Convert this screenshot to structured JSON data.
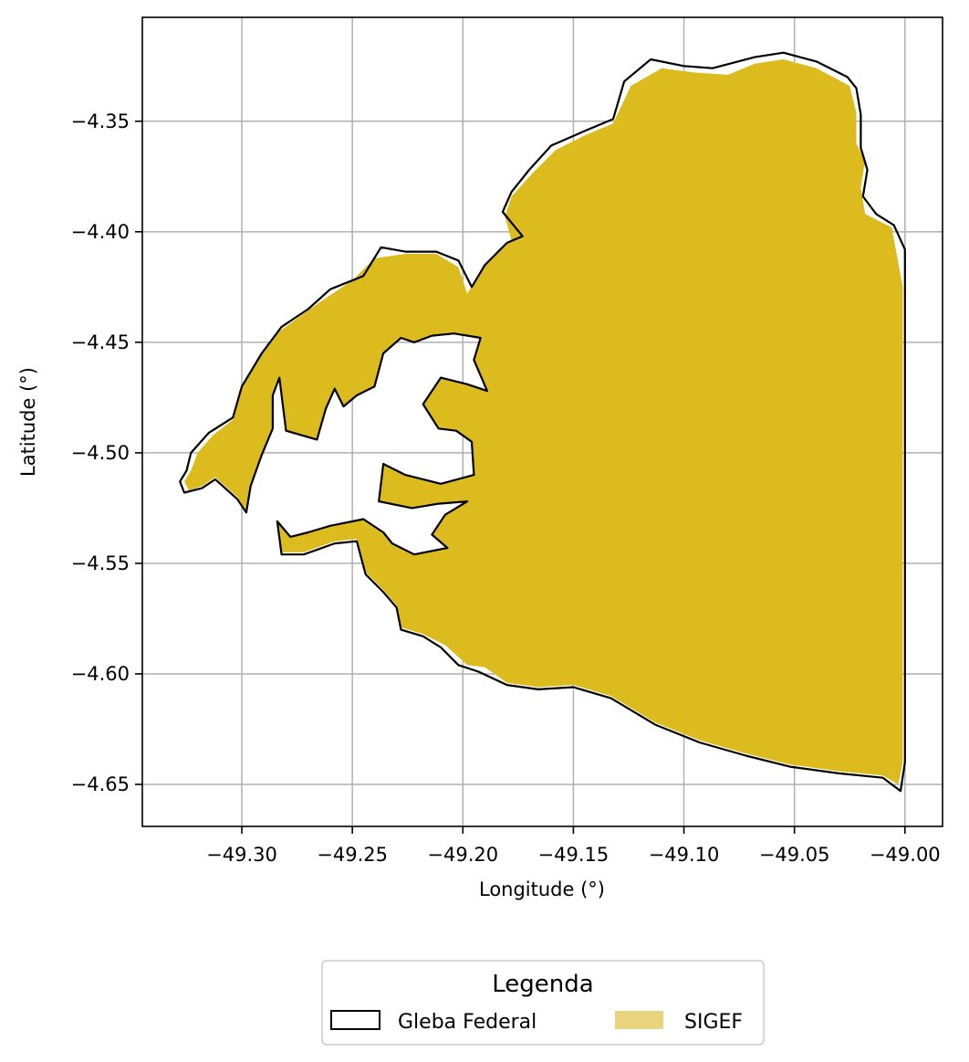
{
  "chart_data": {
    "type": "map",
    "xlabel": "Longitude (°)",
    "ylabel": "Latitude (°)",
    "xlim": [
      -49.345,
      -48.983
    ],
    "ylim": [
      -4.669,
      -4.303
    ],
    "x_ticks": [
      -49.3,
      -49.25,
      -49.2,
      -49.15,
      -49.1,
      -49.05,
      -49.0
    ],
    "x_tick_labels": [
      "−49.30",
      "−49.25",
      "−49.20",
      "−49.15",
      "−49.10",
      "−49.05",
      "−49.00"
    ],
    "y_ticks": [
      -4.35,
      -4.4,
      -4.45,
      -4.5,
      -4.55,
      -4.6,
      -4.65
    ],
    "y_tick_labels": [
      "−4.35",
      "−4.40",
      "−4.45",
      "−4.50",
      "−4.55",
      "−4.60",
      "−4.65"
    ],
    "grid": true,
    "legend": {
      "title": "Legenda",
      "placement": "bottom-center",
      "entries": [
        {
          "label": "Gleba Federal",
          "style": "outline",
          "color": "#000000"
        },
        {
          "label": "SIGEF",
          "style": "fill",
          "color": "#e8d47c"
        }
      ]
    },
    "layers": [
      {
        "name": "Gleba Federal",
        "style": "outline",
        "polygon": [
          [
            -49.323,
            -4.5
          ],
          [
            -49.325,
            -4.508
          ],
          [
            -49.328,
            -4.513
          ],
          [
            -49.326,
            -4.518
          ],
          [
            -49.318,
            -4.516
          ],
          [
            -49.312,
            -4.512
          ],
          [
            -49.302,
            -4.521
          ],
          [
            -49.298,
            -4.527
          ],
          [
            -49.296,
            -4.515
          ],
          [
            -49.291,
            -4.501
          ],
          [
            -49.286,
            -4.489
          ],
          [
            -49.286,
            -4.474
          ],
          [
            -49.283,
            -4.466
          ],
          [
            -49.28,
            -4.49
          ],
          [
            -49.266,
            -4.494
          ],
          [
            -49.262,
            -4.48
          ],
          [
            -49.258,
            -4.471
          ],
          [
            -49.254,
            -4.479
          ],
          [
            -49.248,
            -4.474
          ],
          [
            -49.24,
            -4.47
          ],
          [
            -49.236,
            -4.455
          ],
          [
            -49.228,
            -4.448
          ],
          [
            -49.222,
            -4.45
          ],
          [
            -49.214,
            -4.447
          ],
          [
            -49.204,
            -4.446
          ],
          [
            -49.192,
            -4.448
          ],
          [
            -49.195,
            -4.458
          ],
          [
            -49.189,
            -4.472
          ],
          [
            -49.198,
            -4.469
          ],
          [
            -49.21,
            -4.466
          ],
          [
            -49.218,
            -4.478
          ],
          [
            -49.211,
            -4.489
          ],
          [
            -49.203,
            -4.49
          ],
          [
            -49.196,
            -4.495
          ],
          [
            -49.195,
            -4.51
          ],
          [
            -49.21,
            -4.514
          ],
          [
            -49.226,
            -4.51
          ],
          [
            -49.236,
            -4.505
          ],
          [
            -49.238,
            -4.522
          ],
          [
            -49.223,
            -4.525
          ],
          [
            -49.211,
            -4.523
          ],
          [
            -49.198,
            -4.522
          ],
          [
            -49.208,
            -4.528
          ],
          [
            -49.214,
            -4.537
          ],
          [
            -49.207,
            -4.543
          ],
          [
            -49.222,
            -4.546
          ],
          [
            -49.232,
            -4.541
          ],
          [
            -49.236,
            -4.536
          ],
          [
            -49.245,
            -4.53
          ],
          [
            -49.26,
            -4.533
          ],
          [
            -49.27,
            -4.536
          ],
          [
            -49.278,
            -4.538
          ],
          [
            -49.284,
            -4.531
          ],
          [
            -49.282,
            -4.546
          ],
          [
            -49.272,
            -4.546
          ],
          [
            -49.258,
            -4.541
          ],
          [
            -49.248,
            -4.54
          ],
          [
            -49.244,
            -4.555
          ],
          [
            -49.236,
            -4.563
          ],
          [
            -49.23,
            -4.57
          ],
          [
            -49.228,
            -4.58
          ],
          [
            -49.218,
            -4.583
          ],
          [
            -49.21,
            -4.588
          ],
          [
            -49.202,
            -4.596
          ],
          [
            -49.193,
            -4.599
          ],
          [
            -49.18,
            -4.605
          ],
          [
            -49.166,
            -4.607
          ],
          [
            -49.15,
            -4.606
          ],
          [
            -49.133,
            -4.611
          ],
          [
            -49.113,
            -4.623
          ],
          [
            -49.093,
            -4.631
          ],
          [
            -49.072,
            -4.637
          ],
          [
            -49.052,
            -4.642
          ],
          [
            -49.03,
            -4.645
          ],
          [
            -49.01,
            -4.647
          ],
          [
            -49.002,
            -4.653
          ],
          [
            -49.0,
            -4.64
          ],
          [
            -49.0,
            -4.55
          ],
          [
            -49.0,
            -4.45
          ],
          [
            -49.0,
            -4.408
          ],
          [
            -49.005,
            -4.397
          ],
          [
            -49.013,
            -4.392
          ],
          [
            -49.019,
            -4.384
          ],
          [
            -49.017,
            -4.372
          ],
          [
            -49.02,
            -4.362
          ],
          [
            -49.02,
            -4.347
          ],
          [
            -49.022,
            -4.335
          ],
          [
            -49.026,
            -4.33
          ],
          [
            -49.04,
            -4.323
          ],
          [
            -49.055,
            -4.319
          ],
          [
            -49.068,
            -4.321
          ],
          [
            -49.087,
            -4.326
          ],
          [
            -49.1,
            -4.325
          ],
          [
            -49.115,
            -4.322
          ],
          [
            -49.127,
            -4.332
          ],
          [
            -49.132,
            -4.349
          ],
          [
            -49.144,
            -4.354
          ],
          [
            -49.16,
            -4.361
          ],
          [
            -49.17,
            -4.372
          ],
          [
            -49.178,
            -4.382
          ],
          [
            -49.182,
            -4.391
          ],
          [
            -49.173,
            -4.402
          ],
          [
            -49.18,
            -4.405
          ],
          [
            -49.19,
            -4.415
          ],
          [
            -49.196,
            -4.425
          ],
          [
            -49.202,
            -4.413
          ],
          [
            -49.212,
            -4.409
          ],
          [
            -49.226,
            -4.409
          ],
          [
            -49.237,
            -4.407
          ],
          [
            -49.245,
            -4.42
          ],
          [
            -49.26,
            -4.426
          ],
          [
            -49.27,
            -4.435
          ],
          [
            -49.282,
            -4.443
          ],
          [
            -49.291,
            -4.455
          ],
          [
            -49.3,
            -4.47
          ],
          [
            -49.304,
            -4.484
          ],
          [
            -49.315,
            -4.491
          ],
          [
            -49.323,
            -4.5
          ]
        ]
      },
      {
        "name": "SIGEF",
        "style": "fill",
        "polygon": [
          [
            -49.32,
            -4.5
          ],
          [
            -49.323,
            -4.508
          ],
          [
            -49.326,
            -4.513
          ],
          [
            -49.324,
            -4.517
          ],
          [
            -49.318,
            -4.515
          ],
          [
            -49.312,
            -4.511
          ],
          [
            -49.302,
            -4.52
          ],
          [
            -49.298,
            -4.526
          ],
          [
            -49.296,
            -4.515
          ],
          [
            -49.291,
            -4.501
          ],
          [
            -49.286,
            -4.489
          ],
          [
            -49.286,
            -4.474
          ],
          [
            -49.283,
            -4.466
          ],
          [
            -49.28,
            -4.49
          ],
          [
            -49.266,
            -4.494
          ],
          [
            -49.262,
            -4.48
          ],
          [
            -49.258,
            -4.471
          ],
          [
            -49.254,
            -4.479
          ],
          [
            -49.248,
            -4.474
          ],
          [
            -49.24,
            -4.47
          ],
          [
            -49.236,
            -4.455
          ],
          [
            -49.228,
            -4.448
          ],
          [
            -49.222,
            -4.45
          ],
          [
            -49.214,
            -4.447
          ],
          [
            -49.204,
            -4.446
          ],
          [
            -49.192,
            -4.448
          ],
          [
            -49.195,
            -4.458
          ],
          [
            -49.189,
            -4.472
          ],
          [
            -49.198,
            -4.469
          ],
          [
            -49.21,
            -4.466
          ],
          [
            -49.218,
            -4.478
          ],
          [
            -49.211,
            -4.489
          ],
          [
            -49.203,
            -4.49
          ],
          [
            -49.196,
            -4.495
          ],
          [
            -49.195,
            -4.51
          ],
          [
            -49.21,
            -4.514
          ],
          [
            -49.226,
            -4.51
          ],
          [
            -49.236,
            -4.505
          ],
          [
            -49.238,
            -4.522
          ],
          [
            -49.223,
            -4.525
          ],
          [
            -49.211,
            -4.523
          ],
          [
            -49.198,
            -4.522
          ],
          [
            -49.208,
            -4.528
          ],
          [
            -49.214,
            -4.537
          ],
          [
            -49.207,
            -4.543
          ],
          [
            -49.222,
            -4.546
          ],
          [
            -49.232,
            -4.541
          ],
          [
            -49.236,
            -4.536
          ],
          [
            -49.245,
            -4.53
          ],
          [
            -49.26,
            -4.533
          ],
          [
            -49.27,
            -4.536
          ],
          [
            -49.278,
            -4.538
          ],
          [
            -49.284,
            -4.531
          ],
          [
            -49.282,
            -4.545
          ],
          [
            -49.272,
            -4.545
          ],
          [
            -49.258,
            -4.54
          ],
          [
            -49.248,
            -4.539
          ],
          [
            -49.244,
            -4.554
          ],
          [
            -49.236,
            -4.562
          ],
          [
            -49.23,
            -4.569
          ],
          [
            -49.228,
            -4.579
          ],
          [
            -49.218,
            -4.582
          ],
          [
            -49.208,
            -4.587
          ],
          [
            -49.198,
            -4.596
          ],
          [
            -49.19,
            -4.597
          ],
          [
            -49.18,
            -4.604
          ],
          [
            -49.166,
            -4.606
          ],
          [
            -49.15,
            -4.605
          ],
          [
            -49.133,
            -4.61
          ],
          [
            -49.113,
            -4.622
          ],
          [
            -49.093,
            -4.63
          ],
          [
            -49.072,
            -4.636
          ],
          [
            -49.052,
            -4.641
          ],
          [
            -49.03,
            -4.644
          ],
          [
            -49.01,
            -4.646
          ],
          [
            -49.003,
            -4.65
          ],
          [
            -49.001,
            -4.64
          ],
          [
            -49.001,
            -4.55
          ],
          [
            -49.001,
            -4.45
          ],
          [
            -49.001,
            -4.425
          ],
          [
            -49.006,
            -4.398
          ],
          [
            -49.018,
            -4.392
          ],
          [
            -49.02,
            -4.38
          ],
          [
            -49.018,
            -4.368
          ],
          [
            -49.022,
            -4.36
          ],
          [
            -49.022,
            -4.346
          ],
          [
            -49.025,
            -4.334
          ],
          [
            -49.04,
            -4.326
          ],
          [
            -49.055,
            -4.322
          ],
          [
            -49.068,
            -4.324
          ],
          [
            -49.08,
            -4.329
          ],
          [
            -49.095,
            -4.328
          ],
          [
            -49.11,
            -4.326
          ],
          [
            -49.124,
            -4.334
          ],
          [
            -49.132,
            -4.351
          ],
          [
            -49.144,
            -4.356
          ],
          [
            -49.158,
            -4.363
          ],
          [
            -49.168,
            -4.373
          ],
          [
            -49.178,
            -4.384
          ],
          [
            -49.181,
            -4.393
          ],
          [
            -49.178,
            -4.404
          ],
          [
            -49.184,
            -4.408
          ],
          [
            -49.192,
            -4.418
          ],
          [
            -49.198,
            -4.428
          ],
          [
            -49.202,
            -4.416
          ],
          [
            -49.212,
            -4.41
          ],
          [
            -49.226,
            -4.41
          ],
          [
            -49.24,
            -4.412
          ],
          [
            -49.25,
            -4.422
          ],
          [
            -49.262,
            -4.43
          ],
          [
            -49.272,
            -4.437
          ],
          [
            -49.283,
            -4.445
          ],
          [
            -49.292,
            -4.457
          ],
          [
            -49.3,
            -4.471
          ],
          [
            -49.304,
            -4.485
          ],
          [
            -49.313,
            -4.492
          ],
          [
            -49.32,
            -4.5
          ]
        ]
      }
    ]
  }
}
